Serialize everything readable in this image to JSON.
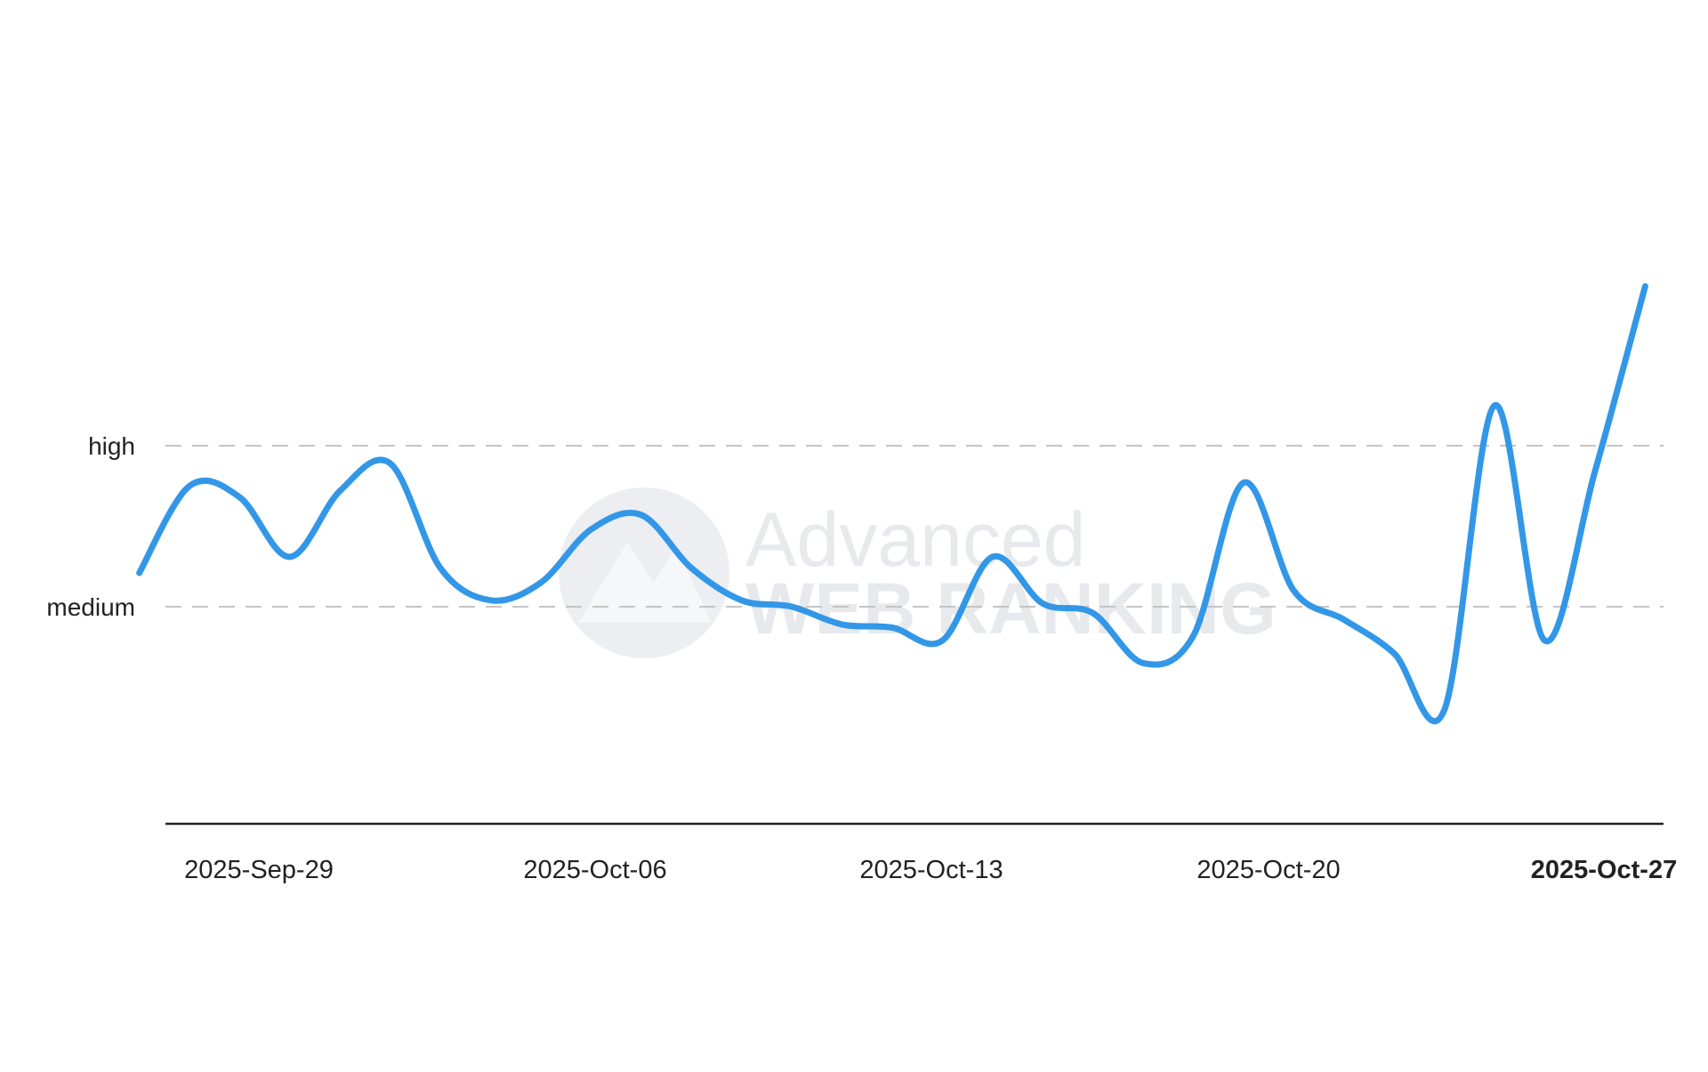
{
  "watermark": {
    "line1": "Advanced",
    "line2": "WEB RANKING"
  },
  "chart_data": {
    "type": "line",
    "title": "",
    "xlabel": "",
    "ylabel": "",
    "y_scale": "categorical-levels",
    "y_ticks": [
      {
        "label": "medium",
        "value": 2
      },
      {
        "label": "high",
        "value": 3
      }
    ],
    "ylim": [
      1.0,
      4.0
    ],
    "grid": "dashed horizontal lines at tick levels",
    "legend": "none",
    "x_ticks": [
      "2025-Sep-29",
      "2025-Oct-06",
      "2025-Oct-13",
      "2025-Oct-20",
      "2025-Oct-27"
    ],
    "x_range": [
      "2025-Sep-28",
      "2025-Oct-27"
    ],
    "series": [
      {
        "color": "#3397e8",
        "points": [
          {
            "x": "2025-Sep-28",
            "y": 2.21
          },
          {
            "x": "2025-Sep-29",
            "y": 2.75
          },
          {
            "x": "2025-Sep-30",
            "y": 2.68
          },
          {
            "x": "2025-Oct-01",
            "y": 2.31
          },
          {
            "x": "2025-Oct-02",
            "y": 2.72
          },
          {
            "x": "2025-Oct-03",
            "y": 2.89
          },
          {
            "x": "2025-Oct-04",
            "y": 2.24
          },
          {
            "x": "2025-Oct-05",
            "y": 2.04
          },
          {
            "x": "2025-Oct-06",
            "y": 2.15
          },
          {
            "x": "2025-Oct-07",
            "y": 2.48
          },
          {
            "x": "2025-Oct-08",
            "y": 2.57
          },
          {
            "x": "2025-Oct-09",
            "y": 2.24
          },
          {
            "x": "2025-Oct-10",
            "y": 2.04
          },
          {
            "x": "2025-Oct-11",
            "y": 2.0
          },
          {
            "x": "2025-Oct-12",
            "y": 1.89
          },
          {
            "x": "2025-Oct-13",
            "y": 1.87
          },
          {
            "x": "2025-Oct-14",
            "y": 1.79
          },
          {
            "x": "2025-Oct-15",
            "y": 2.31
          },
          {
            "x": "2025-Oct-16",
            "y": 2.02
          },
          {
            "x": "2025-Oct-17",
            "y": 1.96
          },
          {
            "x": "2025-Oct-18",
            "y": 1.65
          },
          {
            "x": "2025-Oct-19",
            "y": 1.82
          },
          {
            "x": "2025-Oct-20",
            "y": 2.77
          },
          {
            "x": "2025-Oct-21",
            "y": 2.1
          },
          {
            "x": "2025-Oct-22",
            "y": 1.92
          },
          {
            "x": "2025-Oct-23",
            "y": 1.71
          },
          {
            "x": "2025-Oct-24",
            "y": 1.36
          },
          {
            "x": "2025-Oct-25",
            "y": 3.25
          },
          {
            "x": "2025-Oct-26",
            "y": 1.79
          },
          {
            "x": "2025-Oct-27",
            "y": 2.84
          },
          {
            "x": "2025-Oct-27",
            "y": 3.99
          }
        ]
      }
    ]
  }
}
